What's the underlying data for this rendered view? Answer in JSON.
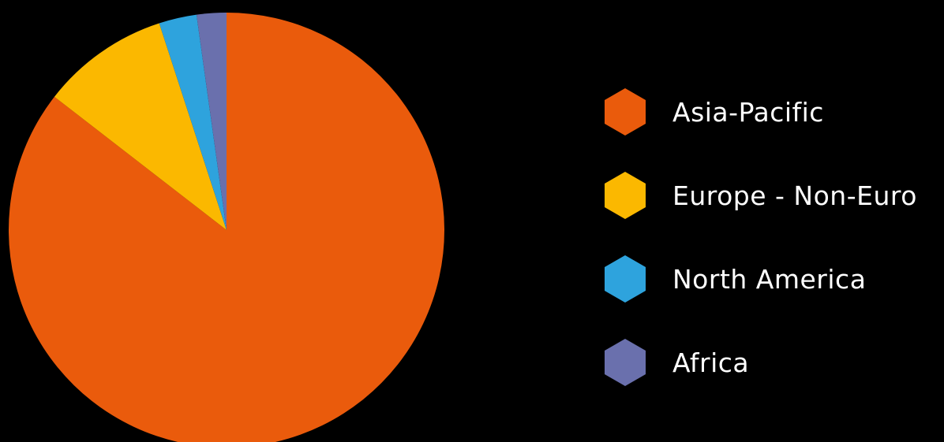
{
  "chart_data": {
    "type": "pie",
    "categories": [
      "Asia-Pacific",
      "Europe - Non-Euro",
      "North America",
      "Africa"
    ],
    "values": [
      85.5,
      9.5,
      2.8,
      2.2
    ],
    "colors": [
      "#ea5b0c",
      "#fbb800",
      "#2ea3dd",
      "#6a70ad"
    ],
    "title": "",
    "legend_position": "right",
    "legend_marker": "hexagon",
    "start_angle_deg": 0,
    "direction": "clockwise"
  },
  "legend": {
    "items": [
      {
        "label": "Asia-Pacific",
        "color": "#ea5b0c"
      },
      {
        "label": "Europe - Non-Euro",
        "color": "#fbb800"
      },
      {
        "label": "North America",
        "color": "#2ea3dd"
      },
      {
        "label": "Africa",
        "color": "#6a70ad"
      }
    ]
  }
}
